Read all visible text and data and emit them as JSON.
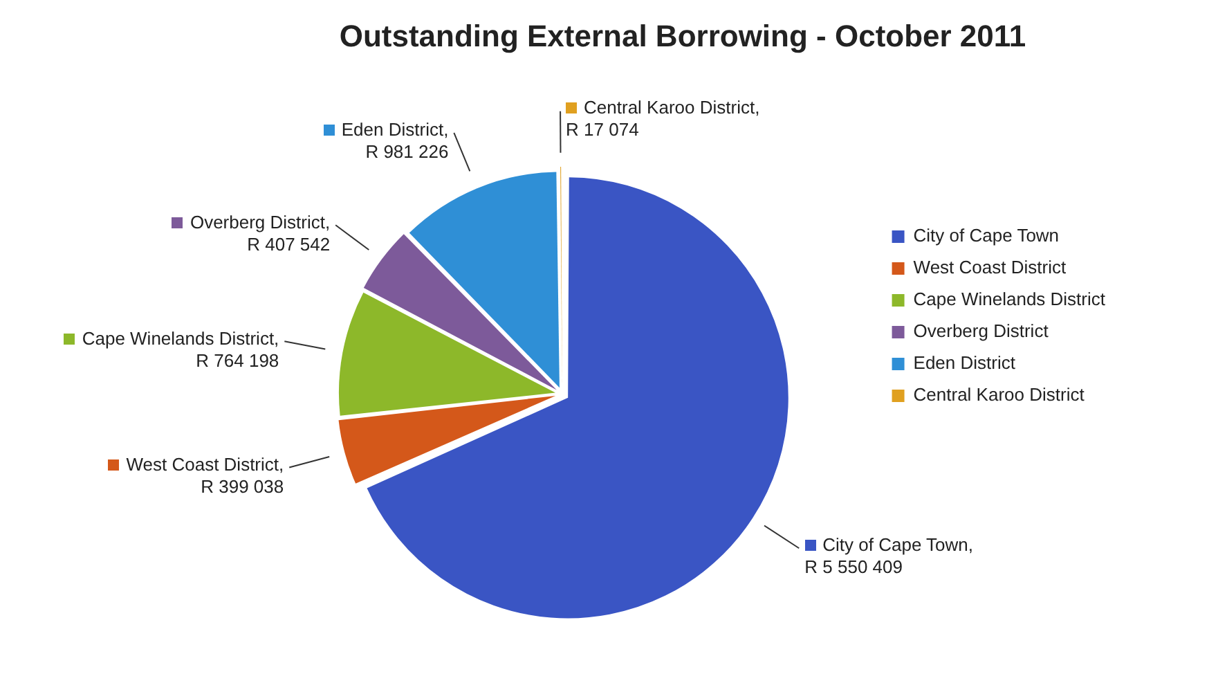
{
  "chart_data": {
    "type": "pie",
    "title": "Outstanding External Borrowing - October 2011",
    "categories": [
      "City of Cape Town",
      "West Coast District",
      "Cape Winelands District",
      "Overberg District",
      "Eden District",
      "Central Karoo District"
    ],
    "values": [
      5550409,
      399038,
      764198,
      407542,
      981226,
      17074
    ],
    "colors": [
      "#3a55c4",
      "#d4581a",
      "#8db82a",
      "#7d5a9a",
      "#2f8fd6",
      "#e0a020"
    ],
    "value_labels": [
      "City of Cape Town, R 5 550 409",
      "West Coast District, R 399 038",
      "Cape Winelands District, R 764 198",
      "Overberg District, R 407 542",
      "Eden District, R 981 226",
      "Central Karoo District, R 17 074"
    ],
    "legend": "right"
  }
}
